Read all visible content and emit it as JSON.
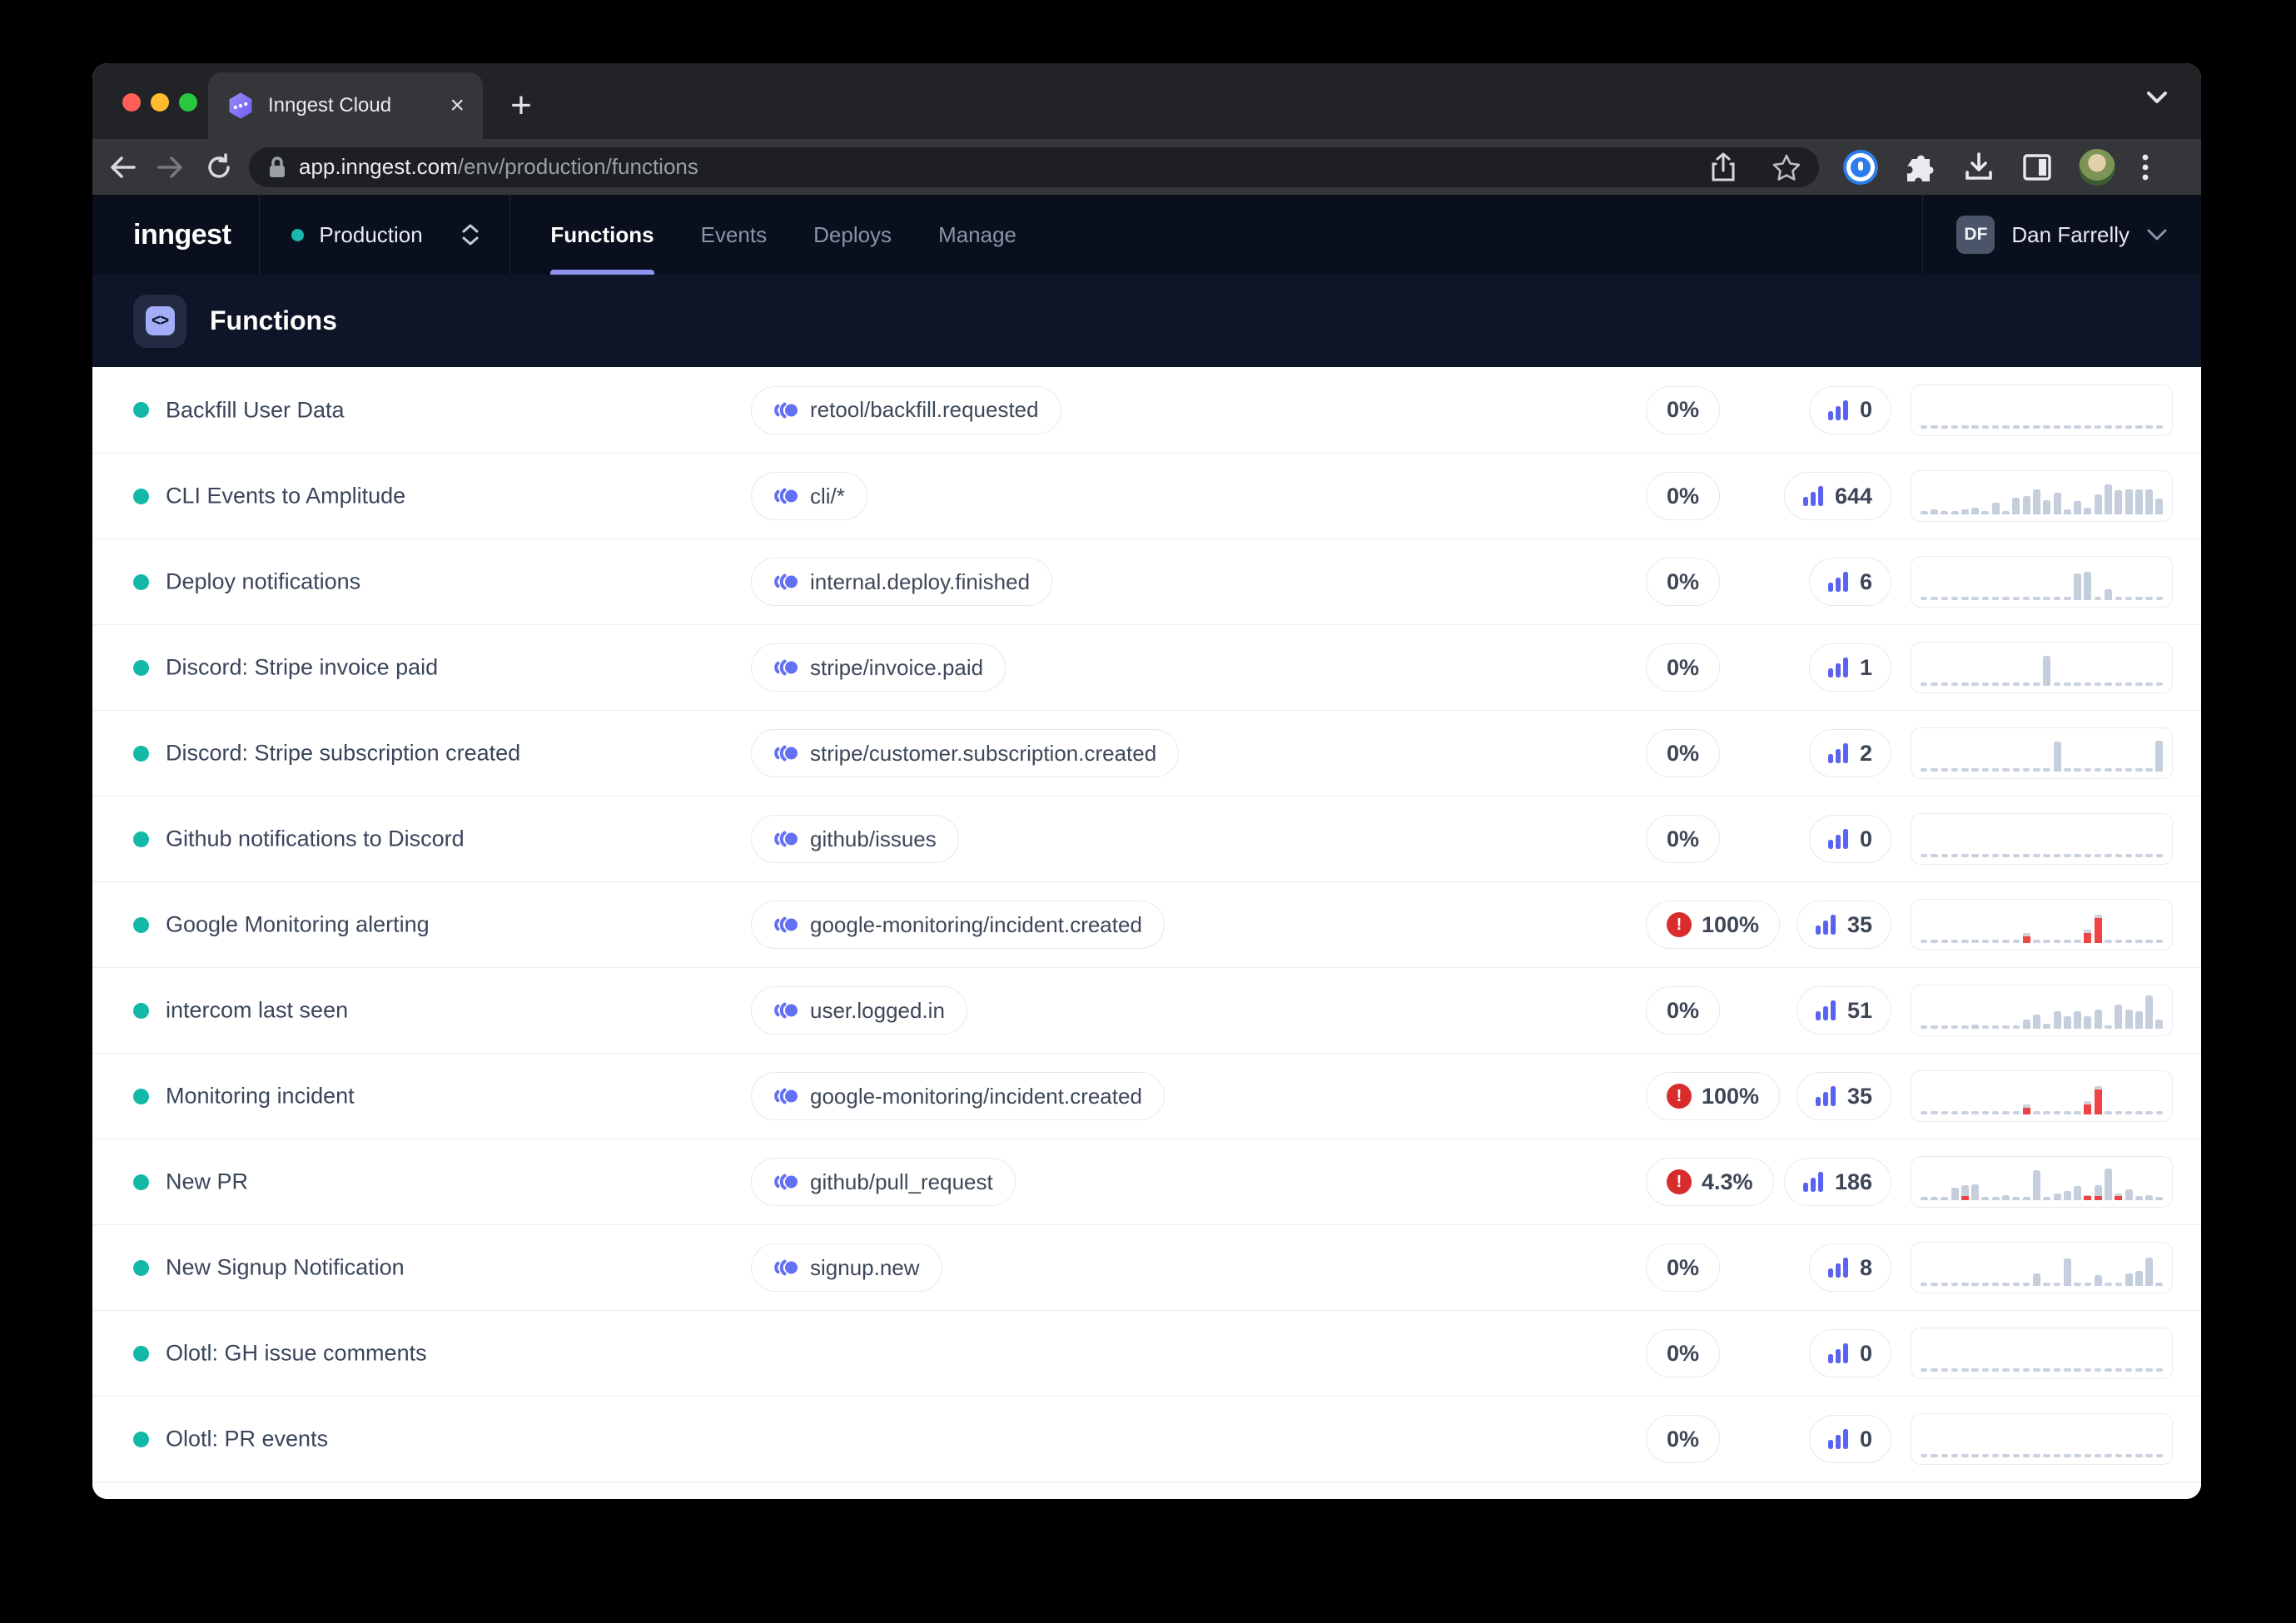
{
  "browser": {
    "tab_title": "Inngest Cloud",
    "new_tab_label": "+",
    "close_tab_label": "×",
    "url_host": "app.inngest.com",
    "url_path": "/env/production/functions"
  },
  "header": {
    "logo": "inngest",
    "environment": {
      "label": "Production"
    },
    "nav": [
      {
        "label": "Functions",
        "active": true
      },
      {
        "label": "Events",
        "active": false
      },
      {
        "label": "Deploys",
        "active": false
      },
      {
        "label": "Manage",
        "active": false
      }
    ],
    "user": {
      "initials": "DF",
      "name": "Dan Farrelly"
    }
  },
  "page": {
    "title": "Functions",
    "icon_glyph": "<>"
  },
  "colors": {
    "teal_dot": "#14b8a6",
    "indigo_accent": "#5a63f0",
    "error_red": "#d92c2c",
    "spark_gray": "#c5cedc",
    "spark_red": "#ef4444",
    "nav_underline": "#8f93f0"
  },
  "functions": [
    {
      "name": "Backfill User Data",
      "event": "retool/backfill.requested",
      "rate": "0%",
      "error": false,
      "count": "0",
      "spark": [
        0,
        0,
        0,
        0,
        0,
        0,
        0,
        0,
        0,
        0,
        0,
        0,
        0,
        0,
        0,
        0,
        0,
        0,
        0,
        0,
        0,
        0,
        0,
        0
      ]
    },
    {
      "name": "CLI Events to Amplitude",
      "event": "cli/*",
      "rate": "0%",
      "error": false,
      "count": "644",
      "spark": [
        [
          0.1,
          "g"
        ],
        [
          0.14,
          "g"
        ],
        [
          0.1,
          "g"
        ],
        [
          0.07,
          "g"
        ],
        [
          0.15,
          "g"
        ],
        [
          0.2,
          "g"
        ],
        [
          0.05,
          "g"
        ],
        [
          0.33,
          "g"
        ],
        [
          0.08,
          "g"
        ],
        [
          0.48,
          "g"
        ],
        [
          0.52,
          "g"
        ],
        [
          0.72,
          "g"
        ],
        [
          0.4,
          "g"
        ],
        [
          0.62,
          "g"
        ],
        [
          0.14,
          "g"
        ],
        [
          0.38,
          "g"
        ],
        [
          0.18,
          "g"
        ],
        [
          0.58,
          "g"
        ],
        [
          0.85,
          "g"
        ],
        [
          0.68,
          "g"
        ],
        [
          0.72,
          "g"
        ],
        [
          0.72,
          "g"
        ],
        [
          0.72,
          "g"
        ],
        [
          0.45,
          "g"
        ]
      ]
    },
    {
      "name": "Deploy notifications",
      "event": "internal.deploy.finished",
      "rate": "0%",
      "error": false,
      "count": "6",
      "spark": [
        0,
        0,
        0,
        0,
        0,
        0,
        0,
        0,
        0,
        0,
        0,
        0,
        0,
        0,
        0,
        [
          0.75,
          "g"
        ],
        [
          0.82,
          "g"
        ],
        0,
        [
          0.3,
          "g"
        ],
        0,
        0,
        0,
        0,
        0
      ]
    },
    {
      "name": "Discord: Stripe invoice paid",
      "event": "stripe/invoice.paid",
      "rate": "0%",
      "error": false,
      "count": "1",
      "spark": [
        0,
        0,
        0,
        0,
        0,
        0,
        0,
        0,
        0,
        0,
        0,
        0,
        [
          0.85,
          "g"
        ],
        0,
        0,
        0,
        0,
        0,
        0,
        0,
        0,
        0,
        0,
        0
      ]
    },
    {
      "name": "Discord: Stripe subscription created",
      "event": "stripe/customer.subscription.created",
      "rate": "0%",
      "error": false,
      "count": "2",
      "spark": [
        0,
        0,
        0,
        0,
        0,
        0,
        0,
        0,
        0,
        0,
        0,
        0,
        0,
        [
          0.85,
          "g"
        ],
        0,
        0,
        0,
        0,
        0,
        0,
        0,
        0,
        0,
        [
          0.88,
          "g"
        ]
      ]
    },
    {
      "name": "Github notifications to Discord",
      "event": "github/issues",
      "rate": "0%",
      "error": false,
      "count": "0",
      "spark": [
        0,
        0,
        0,
        0,
        0,
        0,
        0,
        0,
        0,
        0,
        0,
        0,
        0,
        0,
        0,
        0,
        0,
        0,
        0,
        0,
        0,
        0,
        0,
        0
      ]
    },
    {
      "name": "Google Monitoring alerting",
      "event": "google-monitoring/incident.created",
      "rate": "100%",
      "error": true,
      "count": "35",
      "spark": [
        0,
        0,
        0,
        0,
        0,
        0,
        0,
        0,
        0,
        0,
        [
          0.28,
          "r"
        ],
        [
          0.08,
          "r"
        ],
        0,
        0,
        0,
        0,
        [
          0.38,
          "r"
        ],
        [
          0.8,
          "r"
        ],
        0,
        0,
        0,
        0,
        0,
        0
      ]
    },
    {
      "name": "intercom last seen",
      "event": "user.logged.in",
      "rate": "0%",
      "error": false,
      "count": "51",
      "spark": [
        0,
        0,
        0,
        0,
        0,
        [
          0.12,
          "g"
        ],
        0,
        0,
        0,
        0,
        [
          0.25,
          "g"
        ],
        [
          0.4,
          "g"
        ],
        [
          0.15,
          "g"
        ],
        [
          0.5,
          "g"
        ],
        [
          0.35,
          "g"
        ],
        [
          0.5,
          "g"
        ],
        [
          0.35,
          "g"
        ],
        [
          0.55,
          "g"
        ],
        0,
        [
          0.7,
          "g"
        ],
        [
          0.55,
          "g"
        ],
        [
          0.5,
          "g"
        ],
        [
          0.95,
          "g"
        ],
        [
          0.25,
          "g"
        ]
      ]
    },
    {
      "name": "Monitoring incident",
      "event": "google-monitoring/incident.created",
      "rate": "100%",
      "error": true,
      "count": "35",
      "spark": [
        0,
        0,
        0,
        0,
        0,
        0,
        0,
        0,
        0,
        0,
        [
          0.28,
          "r"
        ],
        [
          0.08,
          "r"
        ],
        0,
        0,
        0,
        0,
        [
          0.38,
          "r"
        ],
        [
          0.8,
          "r"
        ],
        0,
        0,
        0,
        0,
        0,
        0
      ]
    },
    {
      "name": "New PR",
      "event": "github/pull_request",
      "rate": "4.3%",
      "error": true,
      "count": "186",
      "spark": [
        [
          0.05,
          "g"
        ],
        [
          0.05,
          "g"
        ],
        [
          0.06,
          "g"
        ],
        [
          0.35,
          "g"
        ],
        [
          0.42,
          "gr"
        ],
        [
          0.45,
          "g"
        ],
        [
          0.06,
          "g"
        ],
        [
          0.05,
          "g"
        ],
        [
          0.15,
          "g"
        ],
        [
          0.05,
          "g"
        ],
        [
          0.05,
          "g"
        ],
        [
          0.85,
          "g"
        ],
        [
          0.06,
          "g"
        ],
        [
          0.2,
          "g"
        ],
        [
          0.25,
          "g"
        ],
        [
          0.4,
          "g"
        ],
        [
          0.15,
          "gr"
        ],
        [
          0.42,
          "gr"
        ],
        [
          0.9,
          "g"
        ],
        [
          0.2,
          "gr"
        ],
        [
          0.3,
          "g"
        ],
        [
          0.12,
          "g"
        ],
        [
          0.15,
          "g"
        ],
        [
          0.06,
          "g"
        ]
      ]
    },
    {
      "name": "New Signup Notification",
      "event": "signup.new",
      "rate": "0%",
      "error": false,
      "count": "8",
      "spark": [
        0,
        0,
        0,
        0,
        0,
        0,
        0,
        0,
        0,
        0,
        0,
        [
          0.35,
          "g"
        ],
        0,
        0,
        [
          0.78,
          "g"
        ],
        0,
        0,
        [
          0.3,
          "g"
        ],
        0,
        0,
        [
          0.35,
          "g"
        ],
        [
          0.42,
          "g"
        ],
        [
          0.82,
          "g"
        ],
        [
          0.07,
          "g"
        ]
      ]
    },
    {
      "name": "Olotl: GH issue comments",
      "event": null,
      "rate": "0%",
      "error": false,
      "count": "0",
      "spark": [
        0,
        0,
        0,
        0,
        0,
        0,
        0,
        0,
        0,
        0,
        0,
        0,
        0,
        0,
        0,
        0,
        0,
        0,
        0,
        0,
        0,
        0,
        0,
        0
      ]
    },
    {
      "name": "Olotl: PR events",
      "event": null,
      "rate": "0%",
      "error": false,
      "count": "0",
      "spark": [
        0,
        0,
        0,
        0,
        0,
        0,
        0,
        0,
        0,
        0,
        0,
        0,
        0,
        0,
        0,
        0,
        0,
        0,
        0,
        0,
        0,
        0,
        0,
        0
      ]
    }
  ]
}
